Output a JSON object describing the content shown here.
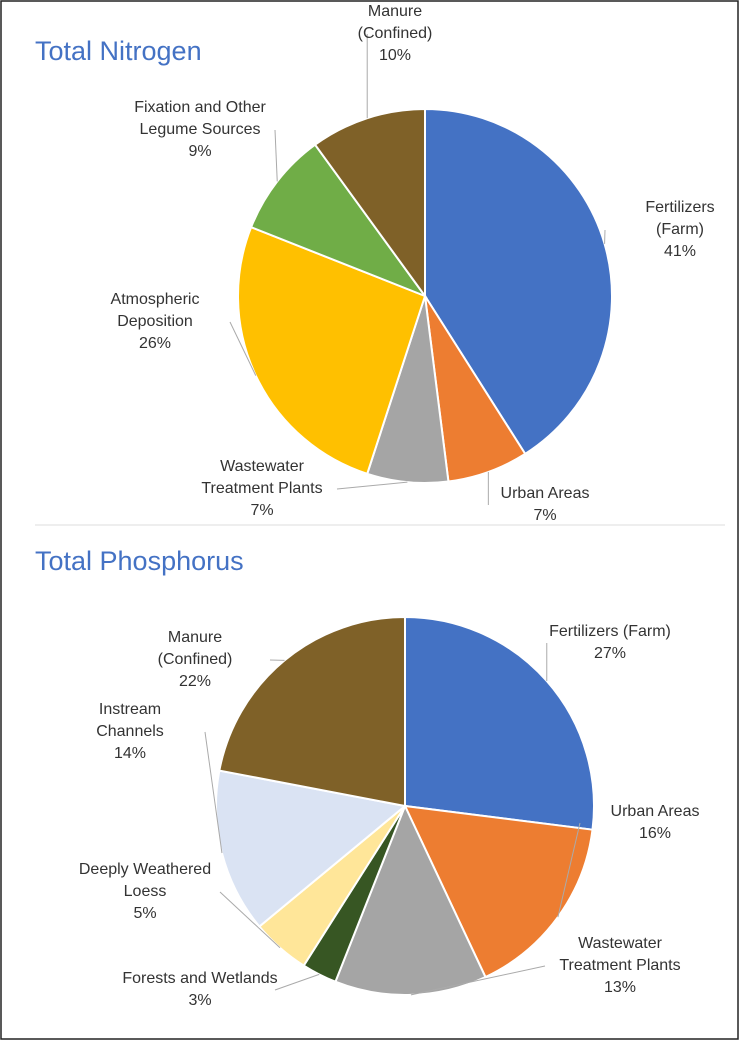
{
  "chart_data": [
    {
      "type": "pie",
      "title": "Total Nitrogen",
      "categories": [
        [
          "Fertilizers",
          "(Farm)"
        ],
        [
          "Urban Areas"
        ],
        [
          "Wastewater",
          "Treatment Plants"
        ],
        [
          "Atmospheric",
          "Deposition"
        ],
        [
          "Fixation and Other",
          "Legume Sources"
        ],
        [
          "Manure",
          "(Confined)"
        ]
      ],
      "values": [
        41,
        7,
        7,
        26,
        9,
        10
      ],
      "value_labels": [
        "41%",
        "7%",
        "7%",
        "26%",
        "9%",
        "10%"
      ],
      "colors": [
        "#4472c4",
        "#ed7d31",
        "#a5a5a5",
        "#ffc000",
        "#70ad47",
        "#7f6128"
      ]
    },
    {
      "type": "pie",
      "title": "Total Phosphorus",
      "categories": [
        [
          "Fertilizers (Farm)"
        ],
        [
          "Urban Areas"
        ],
        [
          "Wastewater",
          "Treatment Plants"
        ],
        [
          "Forests and Wetlands"
        ],
        [
          "Deeply Weathered",
          "Loess"
        ],
        [
          "Instream",
          "Channels"
        ],
        [
          "Manure",
          "(Confined)"
        ]
      ],
      "values": [
        27,
        16,
        13,
        3,
        5,
        14,
        22
      ],
      "value_labels": [
        "27%",
        "16%",
        "13%",
        "3%",
        "5%",
        "14%",
        "22%"
      ],
      "colors": [
        "#4472c4",
        "#ed7d31",
        "#a5a5a5",
        "#375623",
        "#ffe699",
        "#dae3f3",
        "#7f6128"
      ]
    }
  ]
}
